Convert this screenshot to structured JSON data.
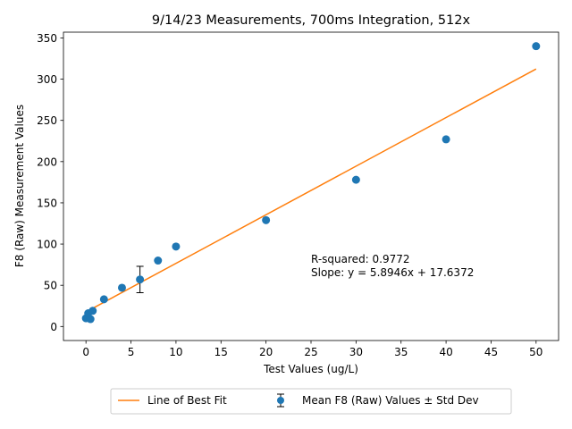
{
  "chart_data": {
    "type": "scatter",
    "title": "9/14/23 Measurements, 700ms Integration, 512x",
    "xlabel": "Test Values (ug/L)",
    "ylabel": "F8 (Raw) Measurement Values",
    "xlim": [
      -2.5,
      52.5
    ],
    "ylim": [
      -17,
      357
    ],
    "xticks": [
      0,
      5,
      10,
      15,
      20,
      25,
      30,
      35,
      40,
      45,
      50
    ],
    "yticks": [
      0,
      50,
      100,
      150,
      200,
      250,
      300,
      350
    ],
    "grid": false,
    "legend_position": "bottom-center",
    "series": [
      {
        "name": "Mean F8 (Raw) Values ± Std Dev",
        "kind": "scatter-errorbar",
        "color": "#1f77b4",
        "points": [
          {
            "x": 0,
            "y": 10,
            "err": 0
          },
          {
            "x": 0.25,
            "y": 16,
            "err": 0
          },
          {
            "x": 0.5,
            "y": 9,
            "err": 0
          },
          {
            "x": 0.75,
            "y": 19,
            "err": 0
          },
          {
            "x": 2,
            "y": 33,
            "err": 0
          },
          {
            "x": 4,
            "y": 47,
            "err": 0
          },
          {
            "x": 6,
            "y": 57,
            "err": 16
          },
          {
            "x": 8,
            "y": 80,
            "err": 0
          },
          {
            "x": 10,
            "y": 97,
            "err": 0
          },
          {
            "x": 20,
            "y": 129,
            "err": 0
          },
          {
            "x": 30,
            "y": 178,
            "err": 0
          },
          {
            "x": 40,
            "y": 227,
            "err": 0
          },
          {
            "x": 50,
            "y": 340,
            "err": 0
          }
        ]
      },
      {
        "name": "Line of Best Fit",
        "kind": "line",
        "color": "#ff7f0e",
        "slope": 5.8946,
        "intercept": 17.6372,
        "x_range": [
          0,
          50
        ]
      }
    ],
    "annotations": {
      "r_squared": "R-squared: 0.9772",
      "slope": "Slope: y = 5.8946x + 17.6372"
    }
  }
}
